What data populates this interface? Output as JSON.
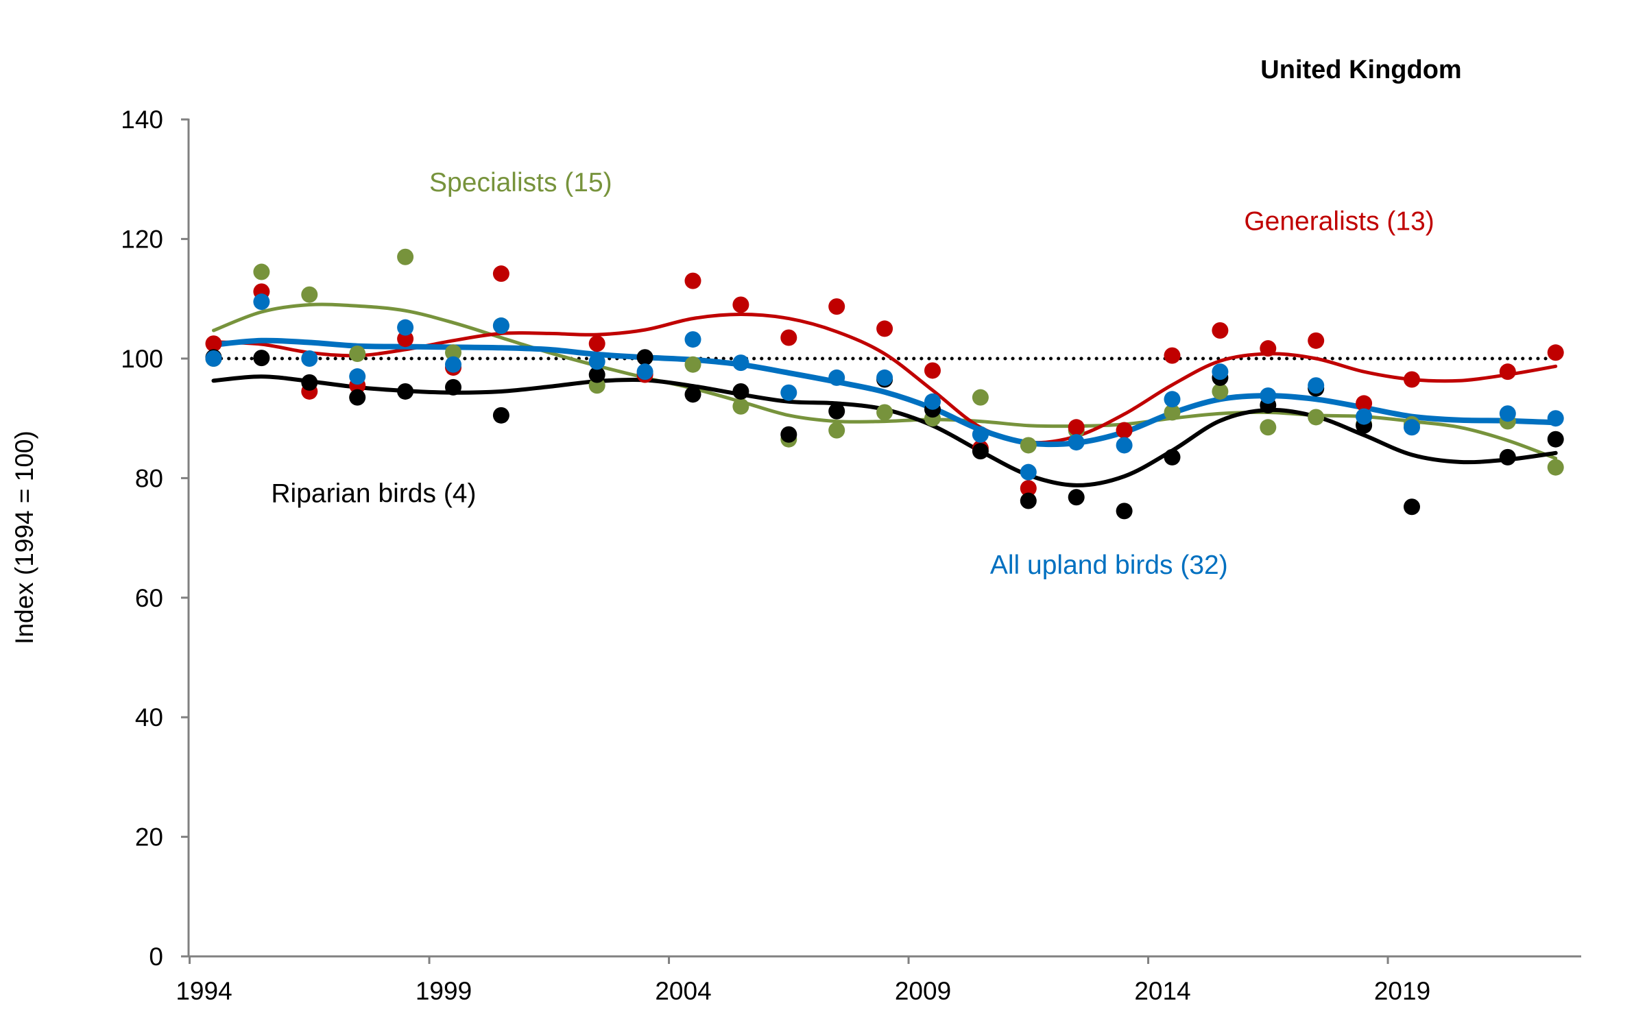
{
  "chart_data": {
    "type": "scatter",
    "title": "United Kingdom",
    "xlabel": "",
    "ylabel": "Index (1994 = 100)",
    "xlim": [
      1994,
      2023
    ],
    "ylim": [
      0,
      140
    ],
    "xticks": [
      1994,
      1999,
      2004,
      2009,
      2014,
      2019
    ],
    "yticks": [
      0,
      20,
      40,
      60,
      80,
      100,
      120,
      140
    ],
    "reference_line": {
      "y": 100,
      "style": "dotted",
      "color": "#000000"
    },
    "series": [
      {
        "name": "Specialists (15)",
        "color": "#77933C",
        "label_pos": [
          1998.5,
          128
        ],
        "x": [
          1994,
          1995,
          1996,
          1997,
          1998,
          1999,
          2000,
          2002,
          2003,
          2004,
          2005,
          2006,
          2007,
          2008,
          2009,
          2010,
          2011,
          2012,
          2013,
          2014,
          2015,
          2016,
          2017,
          2018,
          2019,
          2021,
          2022
        ],
        "points": [
          100,
          114.5,
          110.7,
          100.8,
          117,
          101,
          105.5,
          95.5,
          97.5,
          99,
          92,
          86.5,
          88,
          91,
          90,
          93.5,
          85.5,
          88,
          88,
          91,
          94.5,
          88.5,
          90.2,
          89,
          89,
          89.5,
          81.8
        ],
        "trend_x": [
          1994,
          1995,
          1996,
          1997,
          1998,
          1999,
          2000,
          2001,
          2002,
          2003,
          2004,
          2005,
          2006,
          2007,
          2008,
          2009,
          2010,
          2011,
          2012,
          2013,
          2014,
          2015,
          2016,
          2017,
          2018,
          2019,
          2020,
          2021,
          2022
        ],
        "trend": [
          104.7,
          107.8,
          109,
          108.8,
          108,
          106,
          103.5,
          101,
          98.8,
          96.8,
          95,
          92.8,
          90.5,
          89.5,
          89.5,
          89.8,
          89.5,
          88.8,
          88.7,
          89,
          90,
          90.8,
          91,
          90.5,
          90.3,
          89.5,
          88.5,
          86.3,
          83.3
        ]
      },
      {
        "name": "Generalists (13)",
        "color": "#C00000",
        "label_pos": [
          2015.5,
          121.5
        ],
        "x": [
          1994,
          1995,
          1996,
          1997,
          1998,
          1999,
          2000,
          2002,
          2003,
          2004,
          2005,
          2006,
          2007,
          2008,
          2009,
          2010,
          2011,
          2012,
          2013,
          2014,
          2015,
          2016,
          2017,
          2018,
          2019,
          2021,
          2022
        ],
        "points": [
          102.5,
          111.2,
          94.5,
          95.5,
          103.3,
          98.5,
          114.2,
          102.5,
          97.3,
          113,
          109,
          103.5,
          108.7,
          105,
          98,
          85,
          78.3,
          88.5,
          88,
          100.5,
          104.7,
          101.7,
          103,
          92.5,
          96.5,
          97.8,
          101
        ],
        "trend_x": [
          1994,
          1995,
          1996,
          1997,
          1998,
          1999,
          2000,
          2001,
          2002,
          2003,
          2004,
          2005,
          2006,
          2007,
          2008,
          2009,
          2010,
          2011,
          2012,
          2013,
          2014,
          2015,
          2016,
          2017,
          2018,
          2019,
          2020,
          2021,
          2022
        ],
        "trend": [
          102.8,
          102.4,
          101,
          100.5,
          101.5,
          103,
          104.2,
          104.2,
          104,
          104.8,
          106.7,
          107.4,
          106.7,
          104.5,
          100.8,
          94.7,
          88.5,
          86,
          87,
          90.7,
          95.6,
          99.6,
          100.8,
          100,
          97.8,
          96.5,
          96.3,
          97.3,
          98.7
        ]
      },
      {
        "name": "Riparian birds (4)",
        "color": "#000000",
        "label_pos": [
          1995.2,
          76
        ],
        "x": [
          1994,
          1995,
          1996,
          1997,
          1998,
          1999,
          2000,
          2002,
          2003,
          2004,
          2005,
          2006,
          2007,
          2008,
          2009,
          2010,
          2011,
          2012,
          2013,
          2014,
          2015,
          2016,
          2017,
          2018,
          2019,
          2021,
          2022
        ],
        "points": [
          100.2,
          100.1,
          96,
          93.5,
          94.5,
          95.2,
          90.5,
          97.3,
          100.2,
          94,
          94.5,
          87.3,
          91.2,
          96.5,
          91.5,
          84.5,
          76.2,
          76.8,
          74.5,
          83.5,
          96.8,
          92.2,
          95,
          88.8,
          75.2,
          83.5,
          86.5
        ],
        "trend_x": [
          1994,
          1995,
          1996,
          1997,
          1998,
          1999,
          2000,
          2001,
          2002,
          2003,
          2004,
          2005,
          2006,
          2007,
          2008,
          2009,
          2010,
          2011,
          2012,
          2013,
          2014,
          2015,
          2016,
          2017,
          2018,
          2019,
          2020,
          2021,
          2022
        ],
        "trend": [
          96.3,
          97,
          96.2,
          95.2,
          94.6,
          94.3,
          94.5,
          95.3,
          96.2,
          96.4,
          95.4,
          94,
          92.8,
          92.5,
          91.5,
          88.8,
          84.5,
          80.5,
          78.8,
          80.3,
          84.6,
          89.6,
          91.4,
          90.3,
          87.2,
          83.9,
          82.7,
          83.1,
          84.2
        ]
      },
      {
        "name": "All upland birds (32)",
        "color": "#0070C0",
        "label_pos": [
          2010.2,
          64
        ],
        "x": [
          1994,
          1995,
          1996,
          1997,
          1998,
          1999,
          2000,
          2002,
          2003,
          2004,
          2005,
          2006,
          2007,
          2008,
          2009,
          2010,
          2011,
          2012,
          2013,
          2014,
          2015,
          2016,
          2017,
          2018,
          2019,
          2021,
          2022
        ],
        "points": [
          100,
          109.5,
          100,
          97,
          105.2,
          99,
          105.5,
          99.5,
          97.8,
          103.2,
          99.3,
          94.3,
          96.8,
          96.8,
          92.8,
          87.3,
          81,
          86,
          85.5,
          93.2,
          97.8,
          93.8,
          95.5,
          90.3,
          88.5,
          90.8,
          90
        ],
        "trend_x": [
          1994,
          1995,
          1996,
          1997,
          1998,
          1999,
          2000,
          2001,
          2002,
          2003,
          2004,
          2005,
          2006,
          2007,
          2008,
          2009,
          2010,
          2011,
          2012,
          2013,
          2014,
          2015,
          2016,
          2017,
          2018,
          2019,
          2020,
          2021,
          2022
        ],
        "trend": [
          102.3,
          103,
          102.7,
          102.1,
          102,
          101.9,
          101.8,
          101.5,
          100.7,
          100.2,
          99.8,
          99,
          97.6,
          96.1,
          94.4,
          91.7,
          88.1,
          85.9,
          85.9,
          87.7,
          90.9,
          93.2,
          93.8,
          93.2,
          91.8,
          90.3,
          89.7,
          89.6,
          89.3
        ]
      }
    ]
  }
}
